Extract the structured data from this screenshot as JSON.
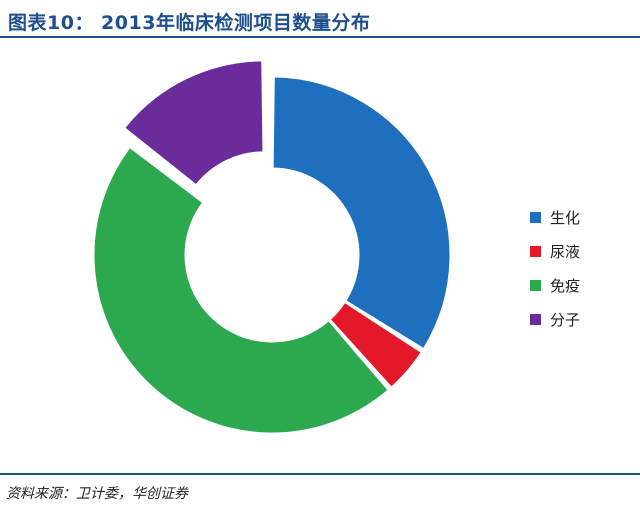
{
  "header": {
    "title": "图表10： 2013年临床检测项目数量分布"
  },
  "footer": {
    "source": "资料来源：卫计委，华创证券"
  },
  "chart_data": {
    "type": "pie",
    "variant": "donut",
    "title": "图表10： 2013年临床检测项目数量分布",
    "categories": [
      "生化",
      "尿液",
      "免疫",
      "分子"
    ],
    "values": [
      34,
      4.5,
      47,
      14.5
    ],
    "colors": [
      "#1f6fbf",
      "#e5182a",
      "#2ca94f",
      "#6a2c9a"
    ],
    "exploded": [
      "分子"
    ],
    "legend": "right"
  }
}
